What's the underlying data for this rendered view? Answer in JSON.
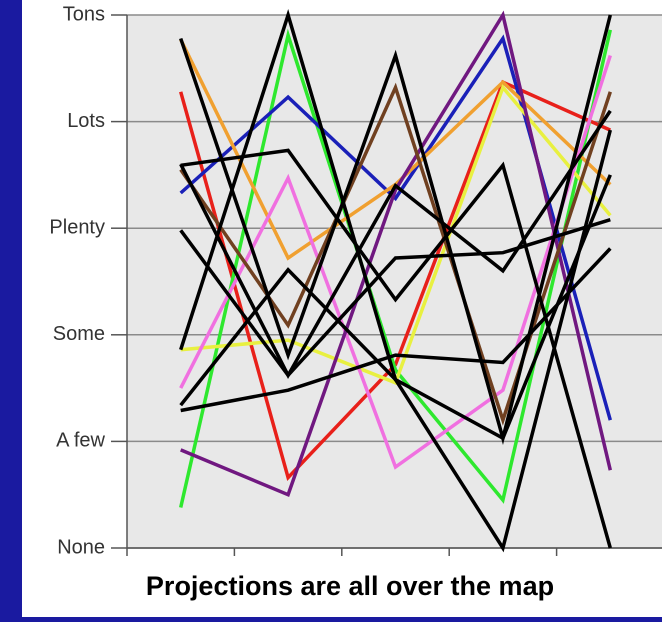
{
  "chart_data": {
    "type": "line",
    "caption": "Projections are all over the map",
    "categories": [
      null,
      null,
      null,
      null,
      null
    ],
    "ylim": [
      0,
      5
    ],
    "yticks": [
      {
        "value": 0,
        "label": "None"
      },
      {
        "value": 1,
        "label": "A few"
      },
      {
        "value": 2,
        "label": "Some"
      },
      {
        "value": 3,
        "label": "Plenty"
      },
      {
        "value": 4,
        "label": "Lots"
      },
      {
        "value": 5,
        "label": "Tons"
      }
    ],
    "grid": true,
    "series": [
      {
        "color": "#e8201a",
        "values": [
          4.28,
          0.66,
          1.72,
          4.37,
          3.92
        ]
      },
      {
        "color": "#2ee82e",
        "values": [
          0.38,
          4.81,
          1.67,
          0.45,
          4.86
        ]
      },
      {
        "color": "#1a20b8",
        "values": [
          3.33,
          4.23,
          3.28,
          4.78,
          1.2
        ]
      },
      {
        "color": "#f0a030",
        "values": [
          4.77,
          2.72,
          3.41,
          4.37,
          3.41
        ]
      },
      {
        "color": "#e8f040",
        "values": [
          1.86,
          1.95,
          1.55,
          4.32,
          3.12
        ]
      },
      {
        "color": "#f070e0",
        "values": [
          1.5,
          3.47,
          0.76,
          1.48,
          4.62
        ]
      },
      {
        "color": "#701880",
        "values": [
          0.92,
          0.5,
          3.36,
          5,
          0.73
        ]
      },
      {
        "color": "#704020",
        "values": [
          3.55,
          2.09,
          4.32,
          1.2,
          4.28
        ]
      },
      {
        "color": "#000000",
        "values": [
          4.78,
          1.81,
          4.62,
          1.03,
          5
        ]
      },
      {
        "color": "#000000",
        "values": [
          1.86,
          5,
          1.58,
          0,
          3.92
        ]
      },
      {
        "color": "#000000",
        "values": [
          2.98,
          1.62,
          2.72,
          2.77,
          3.08
        ]
      },
      {
        "color": "#000000",
        "values": [
          1.29,
          1.48,
          1.81,
          1.74,
          2.81
        ]
      },
      {
        "color": "#000000",
        "values": [
          3.59,
          3.73,
          2.33,
          3.59,
          0
        ]
      },
      {
        "color": "#000000",
        "values": [
          1.34,
          2.61,
          1.58,
          1.03,
          3.5
        ]
      },
      {
        "color": "#000000",
        "values": [
          3.6,
          1.62,
          3.4,
          2.6,
          4.1
        ]
      }
    ]
  }
}
